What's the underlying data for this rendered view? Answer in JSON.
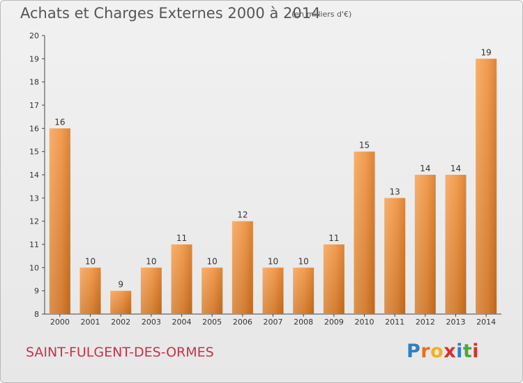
{
  "chart_data": {
    "type": "bar",
    "title": "Achats et Charges Externes 2000 à 2014",
    "subtitle": "(en milliers d'€)",
    "categories": [
      "2000",
      "2001",
      "2002",
      "2003",
      "2004",
      "2005",
      "2006",
      "2007",
      "2008",
      "2009",
      "2010",
      "2011",
      "2012",
      "2013",
      "2014"
    ],
    "values": [
      16,
      10,
      9,
      10,
      11,
      10,
      12,
      10,
      10,
      11,
      15,
      13,
      14,
      14,
      19
    ],
    "ylim": [
      8,
      20
    ],
    "yticks": [
      8,
      9,
      10,
      11,
      12,
      13,
      14,
      15,
      16,
      17,
      18,
      19,
      20
    ],
    "grid": false,
    "legend": "none",
    "bar_color": "#f0903a"
  },
  "footer": {
    "commune": "SAINT-FULGENT-DES-ORMES"
  },
  "logo": {
    "letters": [
      "P",
      "r",
      "o",
      "x",
      "i",
      "t",
      "i"
    ],
    "colors": [
      "#2f7fc1",
      "#e8701a",
      "#f2b21b",
      "#d6302b",
      "#2f7fc1",
      "#4aa83b",
      "#d6302b"
    ]
  }
}
